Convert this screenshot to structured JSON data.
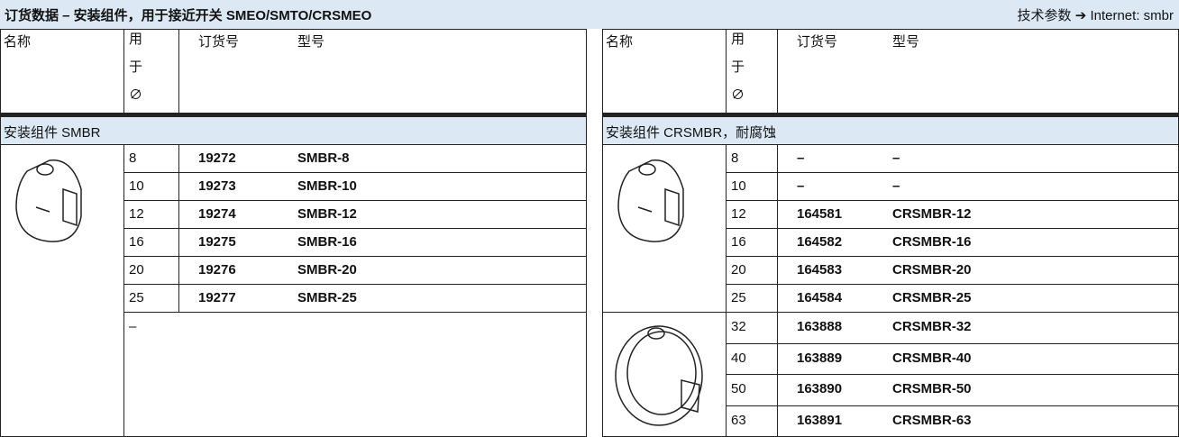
{
  "header": {
    "title": "订货数据 – 安装组件，用于接近开关 SMEO/SMTO/CRSMEO",
    "link": "技术参数 ➔ Internet: smbr"
  },
  "columns": [
    "名称",
    "用于∅",
    "订货号",
    "型号"
  ],
  "left": {
    "section": "安装组件 SMBR",
    "rows": [
      [
        "8",
        "19272",
        "SMBR-8"
      ],
      [
        "10",
        "19273",
        "SMBR-10"
      ],
      [
        "12",
        "19274",
        "SMBR-12"
      ],
      [
        "16",
        "19275",
        "SMBR-16"
      ],
      [
        "20",
        "19276",
        "SMBR-20"
      ],
      [
        "25",
        "19277",
        "SMBR-25"
      ]
    ],
    "note": "–"
  },
  "right": {
    "section": "安装组件 CRSMBR，耐腐蚀",
    "rows": [
      [
        "8",
        "–",
        "–"
      ],
      [
        "10",
        "–",
        "–"
      ],
      [
        "12",
        "164581",
        "CRSMBR-12"
      ],
      [
        "16",
        "164582",
        "CRSMBR-16"
      ],
      [
        "20",
        "164583",
        "CRSMBR-20"
      ],
      [
        "25",
        "164584",
        "CRSMBR-25"
      ],
      [
        "32",
        "163888",
        "CRSMBR-32"
      ],
      [
        "40",
        "163889",
        "CRSMBR-40"
      ],
      [
        "50",
        "163890",
        "CRSMBR-50"
      ],
      [
        "63",
        "163891",
        "CRSMBR-63"
      ]
    ]
  }
}
